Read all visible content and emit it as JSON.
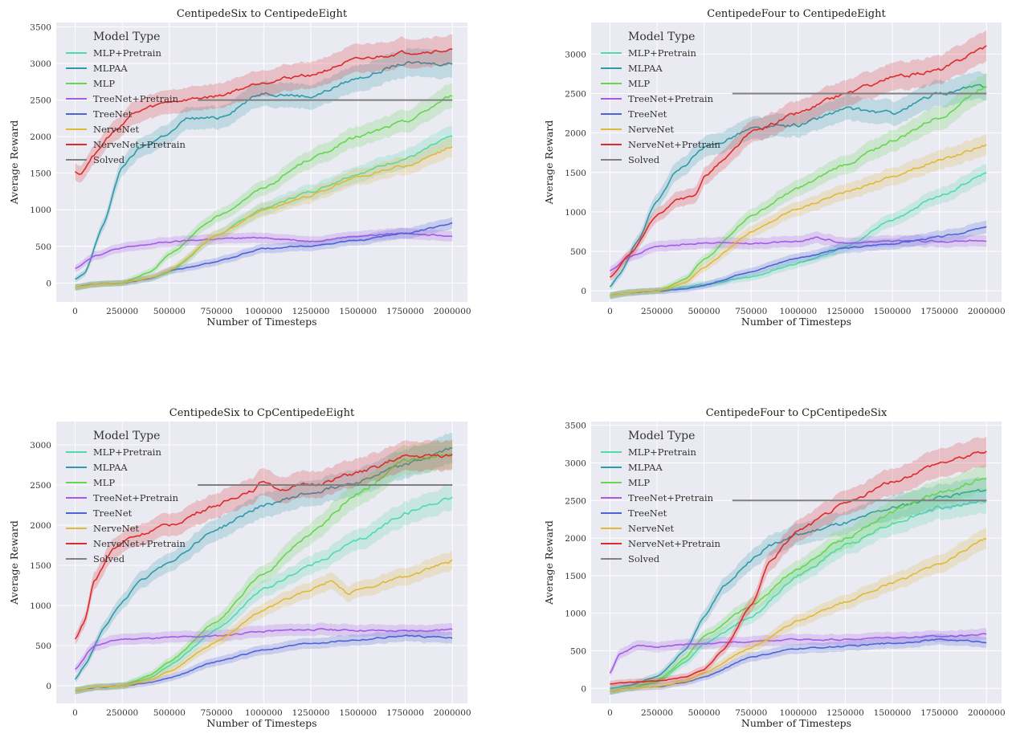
{
  "legend": {
    "title": "Model Type",
    "entries": [
      {
        "name": "MLP+Pretrain",
        "color": "#4fdba8"
      },
      {
        "name": "MLPAA",
        "color": "#2f9aa8"
      },
      {
        "name": "MLP",
        "color": "#66d64f"
      },
      {
        "name": "TreeNet+Pretrain",
        "color": "#a55be6"
      },
      {
        "name": "TreeNet",
        "color": "#4d63d6"
      },
      {
        "name": "NerveNet",
        "color": "#e0b83a"
      },
      {
        "name": "NerveNet+Pretrain",
        "color": "#dd2b2b"
      },
      {
        "name": "Solved",
        "color": "#808080"
      }
    ]
  },
  "chart_data": [
    {
      "type": "line",
      "title": "CentipedeSix to CentipedeEight",
      "xlabel": "Number of Timesteps",
      "ylabel": "Average Reward",
      "xlim": [
        -100000,
        2080000
      ],
      "ylim": [
        -260,
        3560
      ],
      "xticks": [
        0,
        250000,
        500000,
        750000,
        1000000,
        1250000,
        1500000,
        1750000,
        2000000
      ],
      "yticks": [
        0,
        500,
        1000,
        1500,
        2000,
        2500,
        3000,
        3500
      ],
      "grid": true,
      "legend_position": "upper-left",
      "solved": {
        "value": 2500,
        "x_range": [
          650000,
          2000000
        ]
      },
      "series": [
        {
          "name": "MLP+Pretrain",
          "x": [
            0,
            100000,
            250000,
            400000,
            500000,
            750000,
            1000000,
            1250000,
            1500000,
            1750000,
            2000000
          ],
          "y": [
            -60,
            -20,
            0,
            60,
            150,
            650,
            1020,
            1250,
            1500,
            1700,
            1990
          ]
        },
        {
          "name": "MLPAA",
          "x": [
            0,
            50000,
            150000,
            250000,
            350000,
            500000,
            600000,
            750000,
            1000000,
            1250000,
            1500000,
            1750000,
            2000000
          ],
          "y": [
            50,
            120,
            800,
            1600,
            1850,
            2050,
            2250,
            2250,
            2600,
            2550,
            2800,
            3000,
            3000
          ]
        },
        {
          "name": "MLP",
          "x": [
            0,
            100000,
            250000,
            400000,
            500000,
            750000,
            1000000,
            1250000,
            1500000,
            1750000,
            2000000
          ],
          "y": [
            -60,
            -20,
            0,
            150,
            400,
            900,
            1300,
            1700,
            2000,
            2200,
            2560
          ]
        },
        {
          "name": "TreeNet+Pretrain",
          "x": [
            0,
            100000,
            250000,
            500000,
            750000,
            1000000,
            1250000,
            1500000,
            1750000,
            2000000
          ],
          "y": [
            200,
            370,
            480,
            560,
            600,
            620,
            570,
            640,
            680,
            650
          ]
        },
        {
          "name": "TreeNet",
          "x": [
            0,
            100000,
            250000,
            400000,
            500000,
            750000,
            1000000,
            1250000,
            1500000,
            1750000,
            2000000
          ],
          "y": [
            -60,
            -20,
            0,
            60,
            170,
            290,
            470,
            510,
            580,
            680,
            810
          ]
        },
        {
          "name": "NerveNet",
          "x": [
            0,
            100000,
            250000,
            400000,
            500000,
            750000,
            1000000,
            1250000,
            1500000,
            1750000,
            2000000
          ],
          "y": [
            -60,
            -20,
            0,
            70,
            170,
            650,
            1000,
            1200,
            1450,
            1600,
            1850
          ]
        },
        {
          "name": "NerveNet+Pretrain",
          "x": [
            0,
            30000,
            100000,
            200000,
            300000,
            400000,
            500000,
            750000,
            1000000,
            1250000,
            1500000,
            1750000,
            2000000
          ],
          "y": [
            1510,
            1500,
            1750,
            2050,
            2300,
            2400,
            2480,
            2550,
            2750,
            2850,
            3050,
            3150,
            3180
          ]
        }
      ]
    },
    {
      "type": "line",
      "title": "CentipedeFour to CentipedeEight",
      "xlabel": "Number of Timesteps",
      "ylabel": "Average Reward",
      "xlim": [
        -100000,
        2080000
      ],
      "ylim": [
        -140,
        3400
      ],
      "xticks": [
        0,
        250000,
        500000,
        750000,
        1000000,
        1250000,
        1500000,
        1750000,
        2000000
      ],
      "yticks": [
        0,
        500,
        1000,
        1500,
        2000,
        2500,
        3000
      ],
      "grid": true,
      "legend_position": "upper-left",
      "solved": {
        "value": 2500,
        "x_range": [
          650000,
          2000000
        ]
      },
      "series": [
        {
          "name": "MLP+Pretrain",
          "x": [
            0,
            100000,
            250000,
            500000,
            750000,
            1000000,
            1250000,
            1500000,
            1750000,
            2000000
          ],
          "y": [
            -60,
            -20,
            0,
            80,
            180,
            350,
            550,
            900,
            1200,
            1490
          ]
        },
        {
          "name": "MLPAA",
          "x": [
            0,
            50000,
            150000,
            250000,
            350000,
            500000,
            750000,
            1000000,
            1250000,
            1500000,
            1750000,
            2000000
          ],
          "y": [
            50,
            200,
            650,
            1150,
            1500,
            1800,
            2050,
            2100,
            2300,
            2250,
            2500,
            2600
          ]
        },
        {
          "name": "MLP",
          "x": [
            0,
            100000,
            250000,
            400000,
            500000,
            750000,
            1000000,
            1250000,
            1500000,
            1750000,
            2000000
          ],
          "y": [
            -60,
            -20,
            0,
            150,
            400,
            950,
            1300,
            1600,
            1900,
            2200,
            2600
          ]
        },
        {
          "name": "TreeNet+Pretrain",
          "x": [
            0,
            100000,
            250000,
            500000,
            750000,
            1000000,
            1100000,
            1250000,
            1500000,
            1750000,
            2000000
          ],
          "y": [
            260,
            430,
            560,
            610,
            600,
            630,
            680,
            600,
            630,
            630,
            640
          ]
        },
        {
          "name": "TreeNet",
          "x": [
            0,
            100000,
            250000,
            400000,
            500000,
            750000,
            1000000,
            1250000,
            1500000,
            1750000,
            2000000
          ],
          "y": [
            -60,
            -20,
            0,
            20,
            70,
            250,
            420,
            540,
            600,
            680,
            800
          ]
        },
        {
          "name": "NerveNet",
          "x": [
            0,
            100000,
            250000,
            400000,
            500000,
            750000,
            1000000,
            1250000,
            1500000,
            1750000,
            2000000
          ],
          "y": [
            -60,
            -20,
            0,
            100,
            300,
            750,
            1050,
            1250,
            1450,
            1650,
            1850
          ]
        },
        {
          "name": "NerveNet+Pretrain",
          "x": [
            0,
            100000,
            250000,
            350000,
            450000,
            500000,
            600000,
            750000,
            1000000,
            1250000,
            1500000,
            1750000,
            2000000
          ],
          "y": [
            170,
            450,
            950,
            1150,
            1200,
            1450,
            1650,
            2000,
            2250,
            2500,
            2700,
            2800,
            3100
          ]
        }
      ]
    },
    {
      "type": "line",
      "title": "CentipedeSix to CpCentipedeEight",
      "xlabel": "Number of Timesteps",
      "ylabel": "Average Reward",
      "xlim": [
        -100000,
        2080000
      ],
      "ylim": [
        -220,
        3290
      ],
      "xticks": [
        0,
        250000,
        500000,
        750000,
        1000000,
        1250000,
        1500000,
        1750000,
        2000000
      ],
      "yticks": [
        0,
        500,
        1000,
        1500,
        2000,
        2500,
        3000
      ],
      "grid": true,
      "legend_position": "upper-left",
      "solved": {
        "value": 2500,
        "x_range": [
          650000,
          2000000
        ]
      },
      "series": [
        {
          "name": "MLP+Pretrain",
          "x": [
            0,
            100000,
            250000,
            400000,
            500000,
            750000,
            1000000,
            1250000,
            1500000,
            1750000,
            2000000
          ],
          "y": [
            -60,
            -20,
            0,
            100,
            250,
            700,
            1200,
            1500,
            1800,
            2150,
            2350
          ]
        },
        {
          "name": "MLPAA",
          "x": [
            0,
            50000,
            150000,
            250000,
            350000,
            500000,
            750000,
            1000000,
            1250000,
            1500000,
            1750000,
            2000000
          ],
          "y": [
            80,
            250,
            700,
            1050,
            1300,
            1550,
            1950,
            2250,
            2400,
            2550,
            2750,
            2950
          ]
        },
        {
          "name": "MLP",
          "x": [
            0,
            100000,
            250000,
            400000,
            500000,
            750000,
            1000000,
            1250000,
            1500000,
            1750000,
            2000000
          ],
          "y": [
            -60,
            -20,
            0,
            130,
            300,
            800,
            1400,
            1900,
            2400,
            2800,
            2900
          ]
        },
        {
          "name": "TreeNet+Pretrain",
          "x": [
            0,
            100000,
            250000,
            500000,
            750000,
            1000000,
            1250000,
            1500000,
            1750000,
            2000000
          ],
          "y": [
            200,
            500,
            580,
            600,
            620,
            680,
            700,
            690,
            680,
            700
          ]
        },
        {
          "name": "TreeNet",
          "x": [
            0,
            100000,
            250000,
            400000,
            500000,
            750000,
            1000000,
            1250000,
            1500000,
            1750000,
            2000000
          ],
          "y": [
            -60,
            -20,
            0,
            40,
            100,
            300,
            450,
            530,
            570,
            620,
            600
          ]
        },
        {
          "name": "NerveNet",
          "x": [
            0,
            100000,
            250000,
            400000,
            500000,
            750000,
            1000000,
            1250000,
            1350000,
            1450000,
            1500000,
            1750000,
            2000000
          ],
          "y": [
            -60,
            -20,
            0,
            80,
            180,
            550,
            950,
            1200,
            1300,
            1150,
            1200,
            1350,
            1550
          ]
        },
        {
          "name": "NerveNet+Pretrain",
          "x": [
            0,
            50000,
            100000,
            200000,
            300000,
            500000,
            750000,
            950000,
            1000000,
            1100000,
            1250000,
            1500000,
            1750000,
            2000000
          ],
          "y": [
            580,
            800,
            1300,
            1700,
            1850,
            2000,
            2250,
            2450,
            2550,
            2450,
            2500,
            2650,
            2850,
            2870
          ]
        }
      ]
    },
    {
      "type": "line",
      "title": "CentipedeFour to CpCentipedeSix",
      "xlabel": "Number of Timesteps",
      "ylabel": "Average Reward",
      "xlim": [
        -100000,
        2080000
      ],
      "ylim": [
        -200,
        3550
      ],
      "xticks": [
        0,
        250000,
        500000,
        750000,
        1000000,
        1250000,
        1500000,
        1750000,
        2000000
      ],
      "yticks": [
        0,
        500,
        1000,
        1500,
        2000,
        2500,
        3000,
        3500
      ],
      "grid": true,
      "legend_position": "upper-left",
      "solved": {
        "value": 2500,
        "x_range": [
          650000,
          2000000
        ]
      },
      "series": [
        {
          "name": "MLP+Pretrain",
          "x": [
            0,
            100000,
            250000,
            400000,
            500000,
            750000,
            1000000,
            1250000,
            1500000,
            1750000,
            2000000
          ],
          "y": [
            -40,
            0,
            80,
            350,
            600,
            950,
            1500,
            1900,
            2200,
            2400,
            2500
          ]
        },
        {
          "name": "MLPAA",
          "x": [
            0,
            100000,
            250000,
            400000,
            500000,
            600000,
            750000,
            850000,
            1000000,
            1250000,
            1500000,
            1750000,
            2000000
          ],
          "y": [
            0,
            40,
            150,
            500,
            950,
            1350,
            1700,
            1900,
            2050,
            2200,
            2400,
            2550,
            2630
          ]
        },
        {
          "name": "MLP",
          "x": [
            0,
            100000,
            250000,
            400000,
            500000,
            750000,
            1000000,
            1250000,
            1500000,
            1750000,
            2000000
          ],
          "y": [
            -40,
            0,
            100,
            400,
            700,
            1100,
            1600,
            2000,
            2350,
            2600,
            2800
          ]
        },
        {
          "name": "TreeNet+Pretrain",
          "x": [
            0,
            50000,
            150000,
            250000,
            500000,
            750000,
            1000000,
            1250000,
            1500000,
            1750000,
            2000000
          ],
          "y": [
            200,
            450,
            580,
            550,
            600,
            620,
            650,
            650,
            680,
            690,
            720
          ]
        },
        {
          "name": "TreeNet",
          "x": [
            0,
            100000,
            250000,
            400000,
            500000,
            750000,
            1000000,
            1250000,
            1500000,
            1750000,
            2000000
          ],
          "y": [
            -40,
            0,
            20,
            80,
            150,
            420,
            530,
            560,
            600,
            650,
            620
          ]
        },
        {
          "name": "NerveNet",
          "x": [
            0,
            100000,
            250000,
            400000,
            500000,
            750000,
            1000000,
            1250000,
            1500000,
            1750000,
            2000000
          ],
          "y": [
            -40,
            0,
            30,
            100,
            200,
            550,
            900,
            1150,
            1400,
            1650,
            2000
          ]
        },
        {
          "name": "NerveNet+Pretrain",
          "x": [
            0,
            100000,
            250000,
            400000,
            500000,
            600000,
            750000,
            850000,
            1000000,
            1250000,
            1500000,
            1750000,
            2000000
          ],
          "y": [
            60,
            80,
            100,
            150,
            250,
            500,
            1100,
            1700,
            2100,
            2450,
            2750,
            3000,
            3150
          ]
        }
      ]
    }
  ]
}
